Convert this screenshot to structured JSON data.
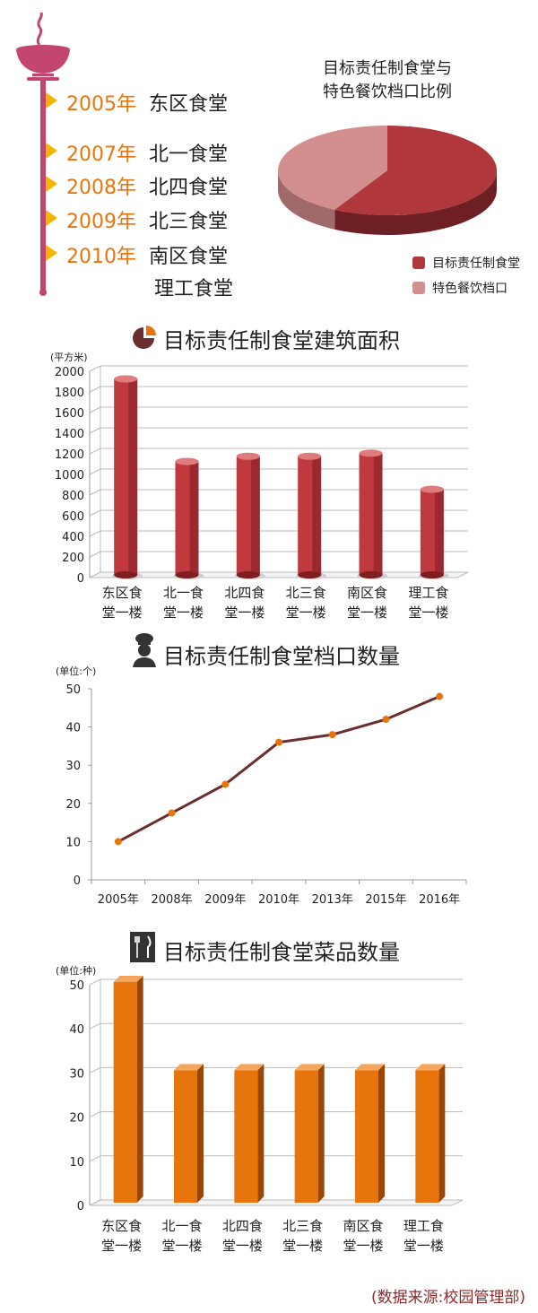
{
  "timeline": [
    {
      "year": "2005年",
      "name": "东区食堂"
    },
    {
      "year": "2007年",
      "name": "北一食堂"
    },
    {
      "year": "2008年",
      "name": "北四食堂"
    },
    {
      "year": "2009年",
      "name": "北三食堂"
    },
    {
      "year": "2010年",
      "name": "南区食堂"
    },
    {
      "year": "",
      "name": "理工食堂"
    }
  ],
  "colors": {
    "timeline": "#c2466e",
    "flag": "#f5b400",
    "year": "#e8740c",
    "bar_red": "#c0393e",
    "line": "#6b2e2e",
    "marker": "#e8740c",
    "bar_orange": "#e8740c",
    "pie_dark": "#b0373c",
    "pie_light": "#d38e8e"
  },
  "chart_data": [
    {
      "type": "pie",
      "title": "目标责任制食堂与\n特色餐饮档口比例",
      "title_lines": [
        "目标责任制食堂与",
        "特色餐饮档口比例"
      ],
      "slices": [
        {
          "label": "目标责任制食堂",
          "value": 58
        },
        {
          "label": "特色餐饮档口",
          "value": 42
        }
      ],
      "legend": [
        "目标责任制食堂",
        "特色餐饮档口"
      ],
      "legend_position": "bottom-right"
    },
    {
      "type": "bar",
      "title": "目标责任制食堂建筑面积",
      "ylabel": "(平方米)",
      "categories": [
        [
          "东区食",
          "堂一楼"
        ],
        [
          "北一食",
          "堂一楼"
        ],
        [
          "北四食",
          "堂一楼"
        ],
        [
          "北三食",
          "堂一楼"
        ],
        [
          "南区食",
          "堂一楼"
        ],
        [
          "理工食",
          "堂一楼"
        ]
      ],
      "values": [
        1900,
        1100,
        1150,
        1150,
        1180,
        830
      ],
      "ylim": [
        0,
        2000
      ],
      "yticks": [
        0,
        200,
        400,
        600,
        800,
        1000,
        1200,
        1400,
        1600,
        1800,
        2000
      ],
      "grid": true
    },
    {
      "type": "line",
      "title": "目标责任制食堂档口数量",
      "ylabel": "(单位:个)",
      "x": [
        "2005年",
        "2008年",
        "2009年",
        "2010年",
        "2013年",
        "2015年",
        "2016年"
      ],
      "values": [
        10,
        17.5,
        25,
        36,
        38,
        42,
        48
      ],
      "ylim": [
        0,
        50
      ],
      "yticks": [
        0,
        10,
        20,
        30,
        40,
        50
      ],
      "grid": false
    },
    {
      "type": "bar",
      "title": "目标责任制食堂菜品数量",
      "ylabel": "(单位:种)",
      "categories": [
        [
          "东区食",
          "堂一楼"
        ],
        [
          "北一食",
          "堂一楼"
        ],
        [
          "北四食",
          "堂一楼"
        ],
        [
          "北三食",
          "堂一楼"
        ],
        [
          "南区食",
          "堂一楼"
        ],
        [
          "理工食",
          "堂一楼"
        ]
      ],
      "values": [
        50,
        30,
        30,
        30,
        30,
        30
      ],
      "ylim": [
        0,
        50
      ],
      "yticks": [
        0,
        10,
        20,
        30,
        40,
        50
      ],
      "grid": true
    }
  ],
  "source": "(数据来源:校园管理部)"
}
